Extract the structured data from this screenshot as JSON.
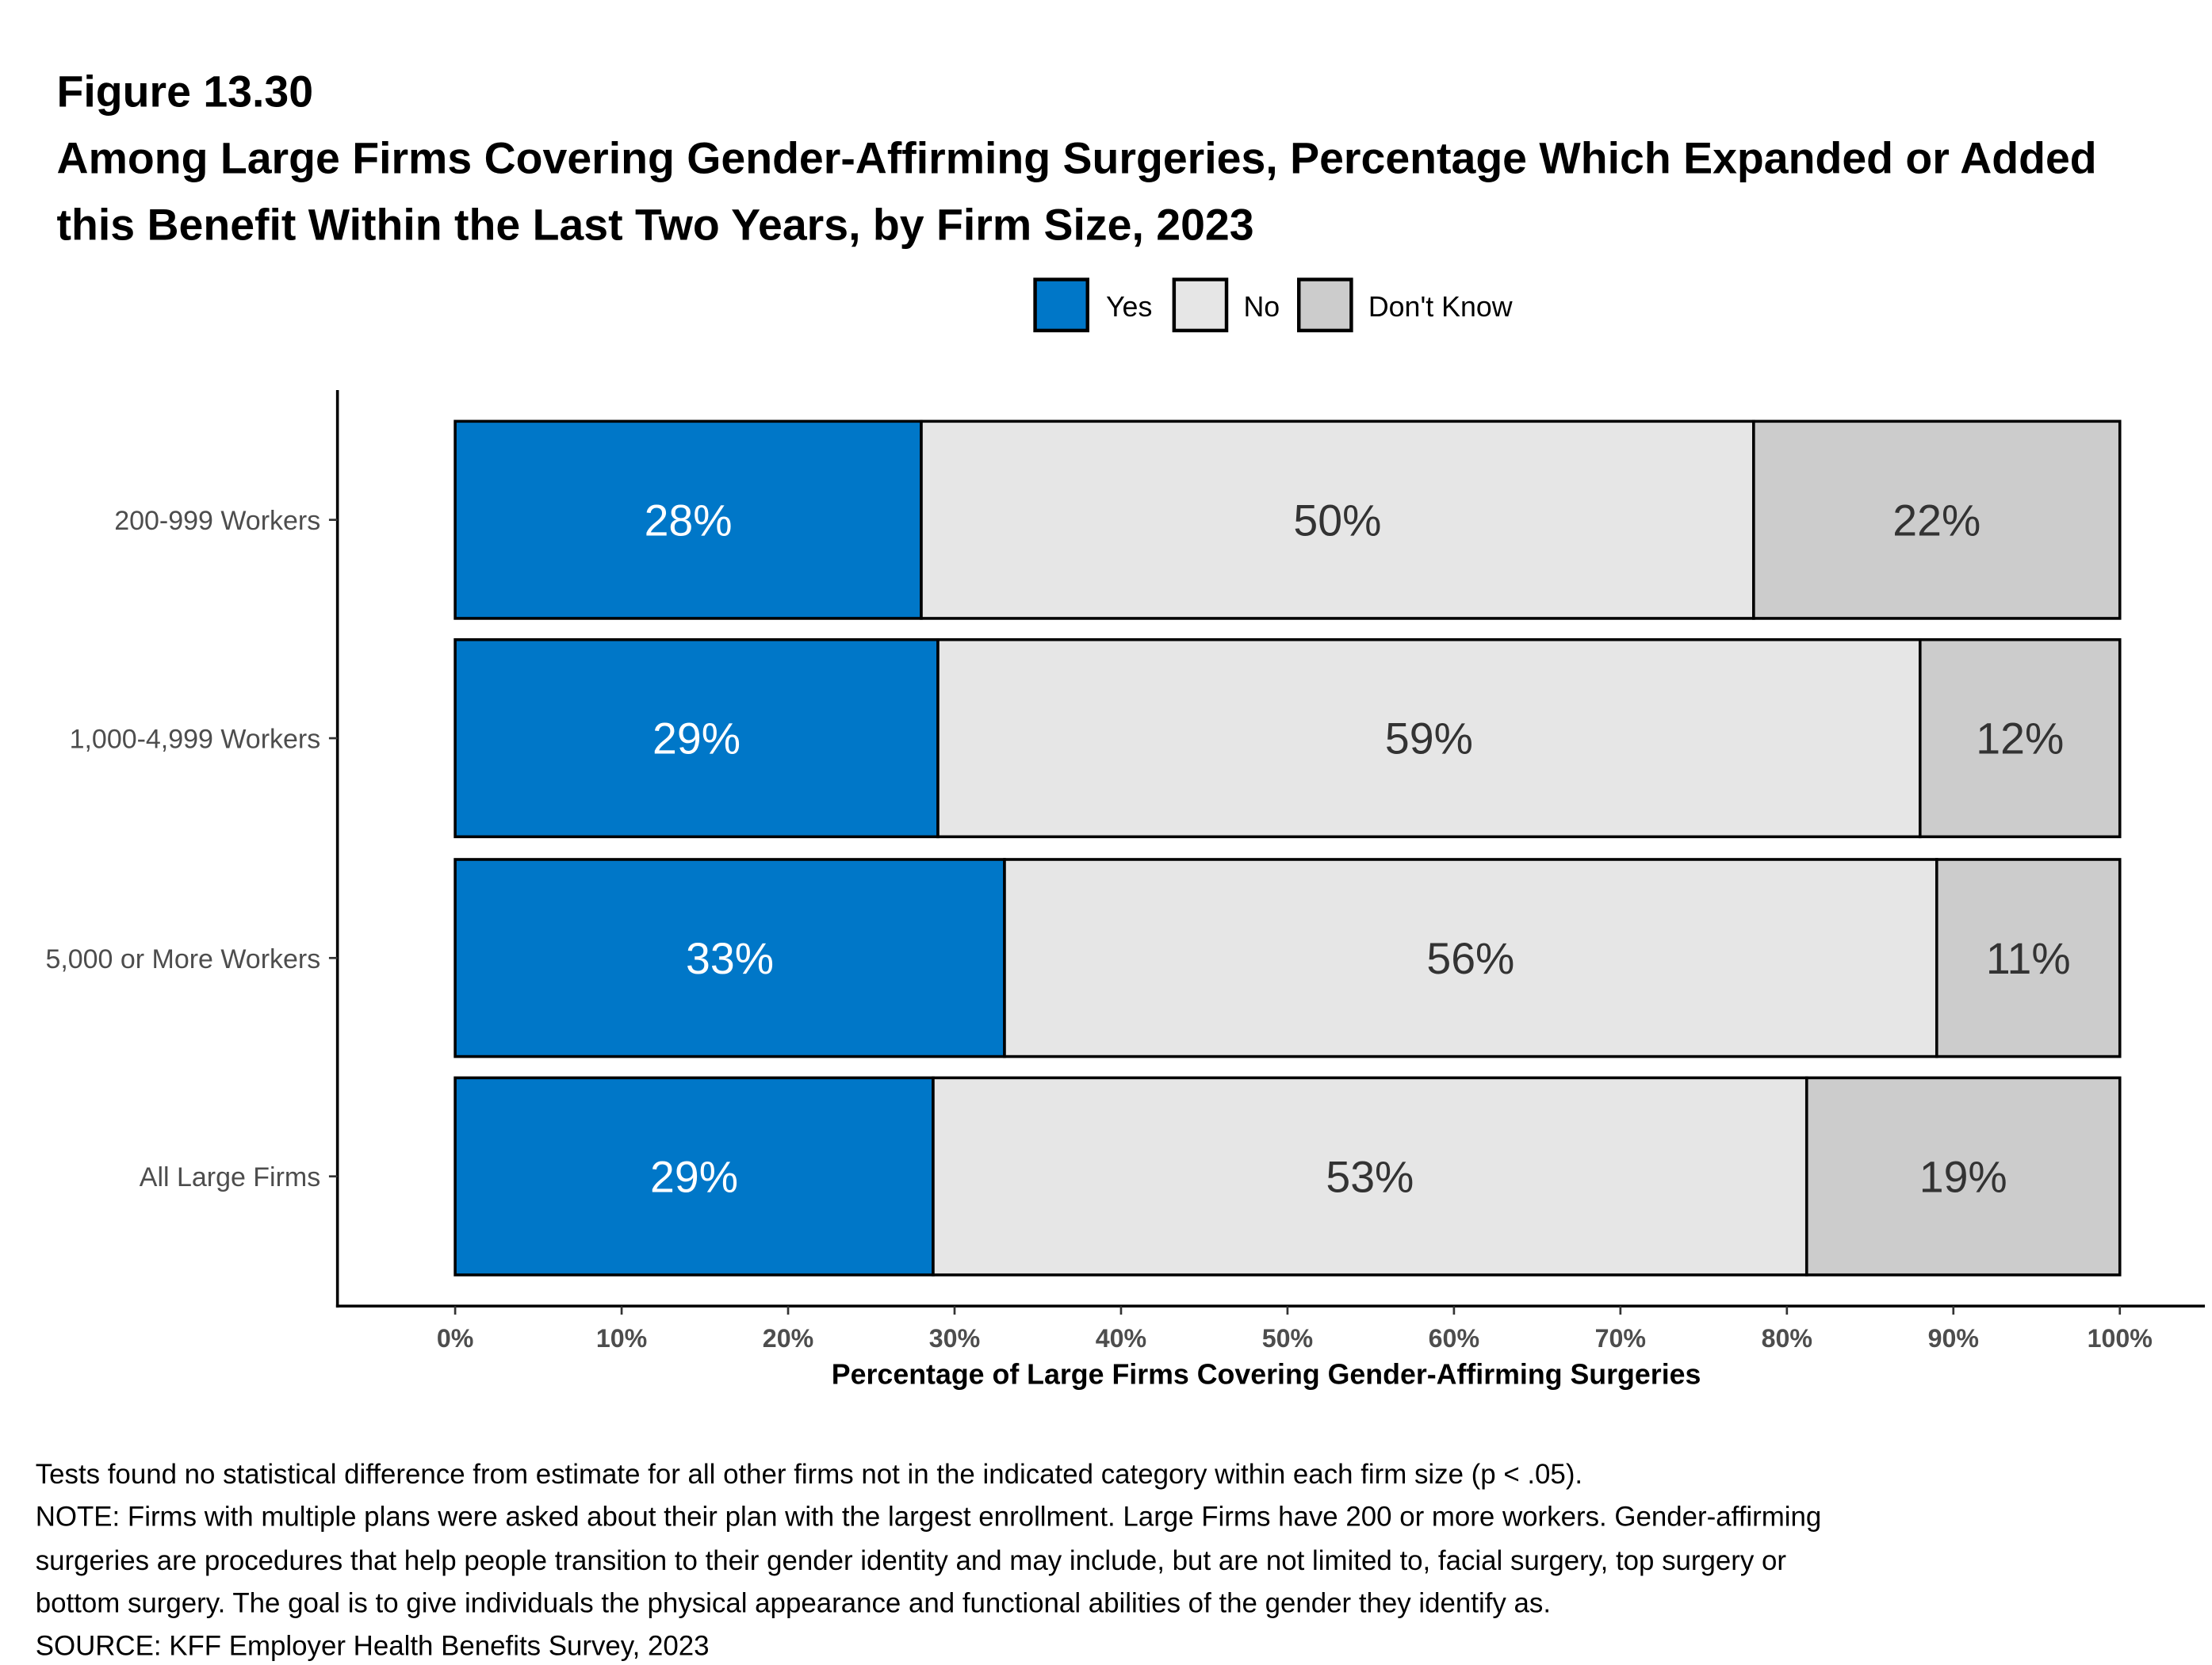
{
  "figure_number": "Figure 13.30",
  "title_line1": "Among Large Firms Covering Gender-Affirming Surgeries, Percentage Which Expanded or Added",
  "title_line2": "this Benefit Within the Last Two Years, by Firm Size, 2023",
  "colors": {
    "Yes": "#0077C8",
    "No": "#E6E6E6",
    "Don't Know": "#CCCCCC"
  },
  "chart_data": {
    "type": "bar",
    "orientation": "horizontal",
    "stacked": true,
    "categories": [
      "200-999 Workers",
      "1,000-4,999 Workers",
      "5,000 or More Workers",
      "All Large Firms"
    ],
    "series": [
      {
        "name": "Yes",
        "values": [
          28,
          29,
          33,
          29
        ],
        "labels": [
          "28%",
          "29%",
          "33%",
          "29%"
        ]
      },
      {
        "name": "No",
        "values": [
          50,
          59,
          56,
          53
        ],
        "labels": [
          "50%",
          "59%",
          "56%",
          "53%"
        ]
      },
      {
        "name": "Don't Know",
        "values": [
          22,
          12,
          11,
          19
        ],
        "labels": [
          "22%",
          "12%",
          "11%",
          "19%"
        ]
      }
    ],
    "xlabel": "Percentage of Large Firms Covering Gender-Affirming Surgeries",
    "xlim": [
      0,
      100
    ],
    "xticks": [
      "0%",
      "10%",
      "20%",
      "30%",
      "40%",
      "50%",
      "60%",
      "70%",
      "80%",
      "90%",
      "100%"
    ],
    "legend_position": "top",
    "grid": false
  },
  "notes": [
    "Tests found no statistical difference from estimate for all other firms not in the indicated category within each firm size (p < .05).",
    "NOTE: Firms with multiple plans were asked about their plan with the largest enrollment.  Large Firms have 200 or more workers.  Gender-affirming",
    "surgeries are procedures that help people transition to their gender identity and may include, but are not limited to, facial surgery, top surgery or",
    "bottom surgery. The goal is to give individuals the physical appearance and functional abilities of the gender they identify as.",
    "SOURCE: KFF Employer Health Benefits Survey, 2023"
  ]
}
